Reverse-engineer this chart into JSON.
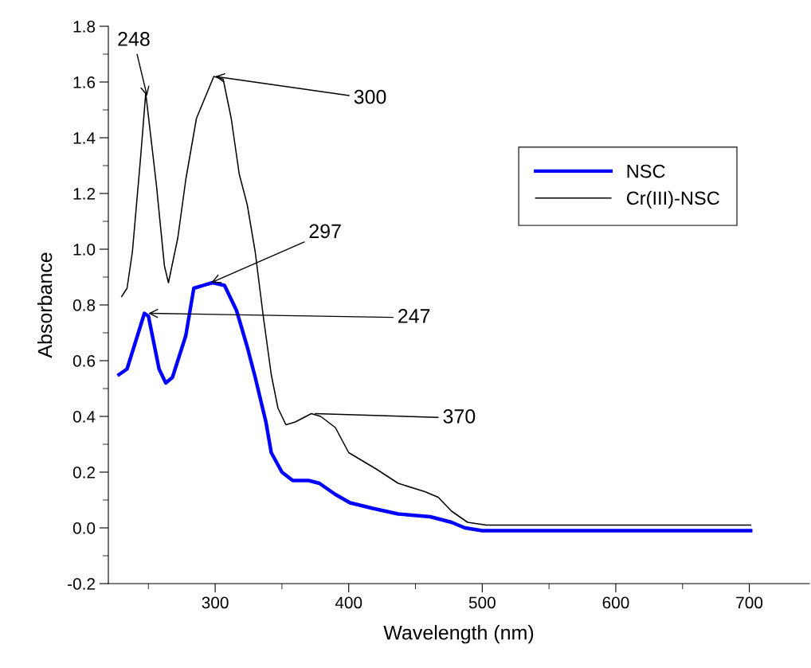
{
  "chart_data": {
    "type": "line",
    "xlabel": "Wavelength (nm)",
    "ylabel": "Absorbance",
    "xlim": [
      220,
      745
    ],
    "xticks": [
      300,
      400,
      500,
      600,
      700
    ],
    "ylim": [
      -0.2,
      1.8
    ],
    "yticks": [
      -0.2,
      {
        "value": 0,
        "label": "0.0"
      },
      0.2,
      0.4,
      0.6,
      0.8,
      {
        "value": 1,
        "label": "1.0"
      },
      1.2,
      1.4,
      1.6,
      1.8
    ],
    "grid": false,
    "legend": "top right",
    "marker": "none",
    "line_style": "solid",
    "series": [
      {
        "name": "NSC",
        "color": "#0000ff",
        "x": [
          228,
          234,
          247,
          250,
          258,
          263,
          268,
          278,
          284,
          298,
          307,
          316,
          324,
          330,
          338,
          342,
          350,
          358,
          370,
          378,
          390,
          401,
          418,
          437,
          461,
          477,
          487,
          500,
          701
        ],
        "values": [
          0.55,
          0.57,
          0.77,
          0.76,
          0.57,
          0.52,
          0.54,
          0.69,
          0.86,
          0.88,
          0.87,
          0.78,
          0.65,
          0.54,
          0.38,
          0.27,
          0.2,
          0.17,
          0.17,
          0.16,
          0.12,
          0.09,
          0.07,
          0.05,
          0.04,
          0.02,
          0.0,
          -0.01,
          -0.01
        ]
      },
      {
        "name": "Cr(III)-NSC",
        "color": "#000000",
        "x": [
          230,
          234,
          238,
          244,
          248,
          256,
          262,
          265,
          272,
          278,
          286,
          299,
          306,
          312,
          318,
          324,
          330,
          336,
          342,
          347,
          353,
          360,
          372,
          379,
          390,
          400,
          407,
          421,
          437,
          457,
          467,
          477,
          489,
          503,
          701
        ],
        "values": [
          0.83,
          0.86,
          0.99,
          1.32,
          1.56,
          1.23,
          0.94,
          0.88,
          1.04,
          1.25,
          1.47,
          1.62,
          1.61,
          1.47,
          1.27,
          1.16,
          0.99,
          0.76,
          0.55,
          0.43,
          0.37,
          0.38,
          0.41,
          0.4,
          0.36,
          0.27,
          0.25,
          0.21,
          0.16,
          0.13,
          0.11,
          0.06,
          0.02,
          0.01,
          0.01
        ]
      }
    ],
    "annotations": [
      {
        "text": "248",
        "x": 249,
        "y": 1.55
      },
      {
        "text": "300",
        "x": 300,
        "y": 1.62
      },
      {
        "text": "297",
        "x": 297,
        "y": 0.88
      },
      {
        "text": "247",
        "x": 250,
        "y": 0.77
      },
      {
        "text": "370",
        "x": 375,
        "y": 0.41
      }
    ]
  }
}
